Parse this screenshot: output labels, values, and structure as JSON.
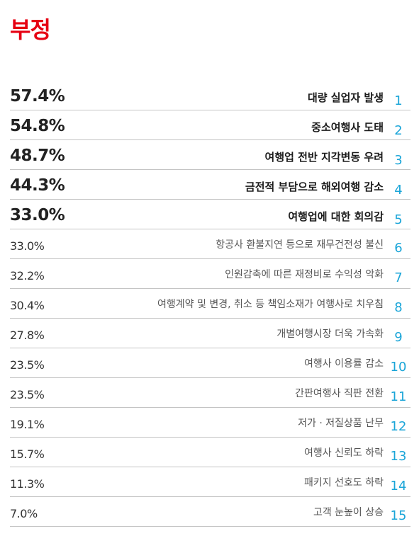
{
  "chart_data": {
    "type": "table",
    "title": "부정",
    "rows": [
      {
        "rank": "1",
        "label": "대량 실업자 발생",
        "value": 57.4,
        "display": "57.4%"
      },
      {
        "rank": "2",
        "label": "중소여행사 도태",
        "value": 54.8,
        "display": "54.8%"
      },
      {
        "rank": "3",
        "label": "여행업 전반 지각변동 우려",
        "value": 48.7,
        "display": "48.7%"
      },
      {
        "rank": "4",
        "label": "금전적 부담으로 해외여행 감소",
        "value": 44.3,
        "display": "44.3%"
      },
      {
        "rank": "5",
        "label": "여행업에 대한 회의감",
        "value": 33.0,
        "display": "33.0%"
      },
      {
        "rank": "6",
        "label": "항공사 환불지연 등으로 재무건전성 불신",
        "value": 33.0,
        "display": "33.0%"
      },
      {
        "rank": "7",
        "label": "인원감축에 따른 재정비로 수익성 악화",
        "value": 32.2,
        "display": "32.2%"
      },
      {
        "rank": "8",
        "label": "여행계약 및 변경, 취소 등 책임소재가 여행사로 치우침",
        "value": 30.4,
        "display": "30.4%"
      },
      {
        "rank": "9",
        "label": "개별여행시장 더욱 가속화",
        "value": 27.8,
        "display": "27.8%"
      },
      {
        "rank": "10",
        "label": "여행사 이용률 감소",
        "value": 23.5,
        "display": "23.5%"
      },
      {
        "rank": "11",
        "label": "간판여행사 직판 전환",
        "value": 23.5,
        "display": "23.5%"
      },
      {
        "rank": "12",
        "label": "저가 · 저질상품 난무",
        "value": 19.1,
        "display": "19.1%"
      },
      {
        "rank": "13",
        "label": "여행사 신뢰도 하락",
        "value": 15.7,
        "display": "15.7%"
      },
      {
        "rank": "14",
        "label": "패키지 선호도 하락",
        "value": 11.3,
        "display": "11.3%"
      },
      {
        "rank": "15",
        "label": "고객 눈높이 상승",
        "value": 7.0,
        "display": "7.0%"
      }
    ],
    "highlight_top": 5,
    "colors": {
      "title": "#e60012",
      "rank": "#1aa5d8",
      "divider": "#c4c4c4"
    }
  }
}
